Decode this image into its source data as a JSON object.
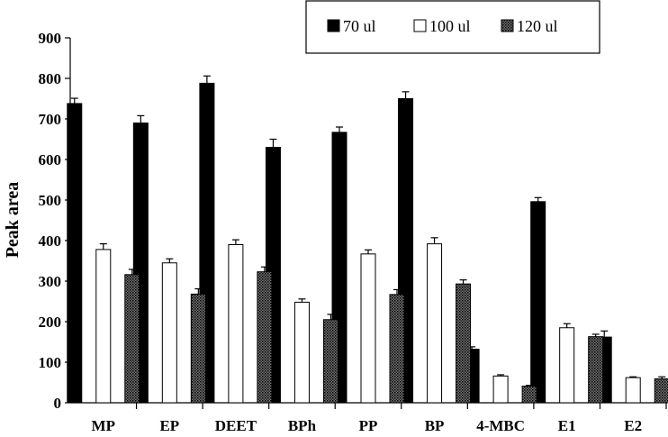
{
  "chart_data": {
    "type": "bar",
    "ylabel": "Peak area",
    "xlabel": "",
    "ylim": [
      0,
      900
    ],
    "yticks": [
      0,
      100,
      200,
      300,
      400,
      500,
      600,
      700,
      800,
      900
    ],
    "grid": false,
    "legend_position": "top-right",
    "categories": [
      "MP",
      "EP",
      "DEET",
      "BPh",
      "PP",
      "BP",
      "4-MBC",
      "E1",
      "E2"
    ],
    "series": [
      {
        "name": "70 ul",
        "fill": "solid-black",
        "values": [
          738,
          690,
          788,
          630,
          667,
          750,
          132,
          496,
          162
        ],
        "errors": [
          13,
          18,
          18,
          20,
          13,
          17,
          6,
          10,
          15
        ]
      },
      {
        "name": "100 ul",
        "fill": "white",
        "values": [
          378,
          345,
          390,
          248,
          367,
          392,
          66,
          185,
          62
        ],
        "errors": [
          14,
          10,
          12,
          8,
          10,
          15,
          3,
          10,
          2
        ]
      },
      {
        "name": "120 ul",
        "fill": "dotted",
        "values": [
          316,
          268,
          323,
          205,
          267,
          293,
          41,
          163,
          59
        ],
        "errors": [
          13,
          13,
          12,
          13,
          12,
          10,
          2,
          6,
          5
        ]
      }
    ]
  }
}
